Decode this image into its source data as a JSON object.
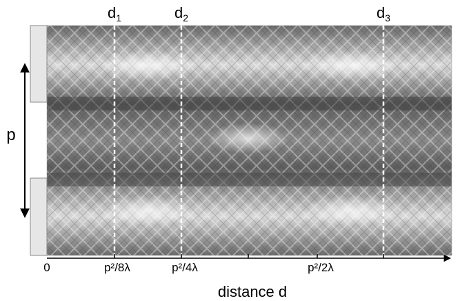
{
  "markers": [
    {
      "base": "d",
      "sub": "1"
    },
    {
      "base": "d",
      "sub": "2"
    },
    {
      "base": "d",
      "sub": "3"
    }
  ],
  "period_label": "p",
  "axis": {
    "ticks": [
      "0",
      "p²/8λ",
      "p²/4λ",
      "p²/2λ"
    ],
    "title": "distance d"
  }
}
